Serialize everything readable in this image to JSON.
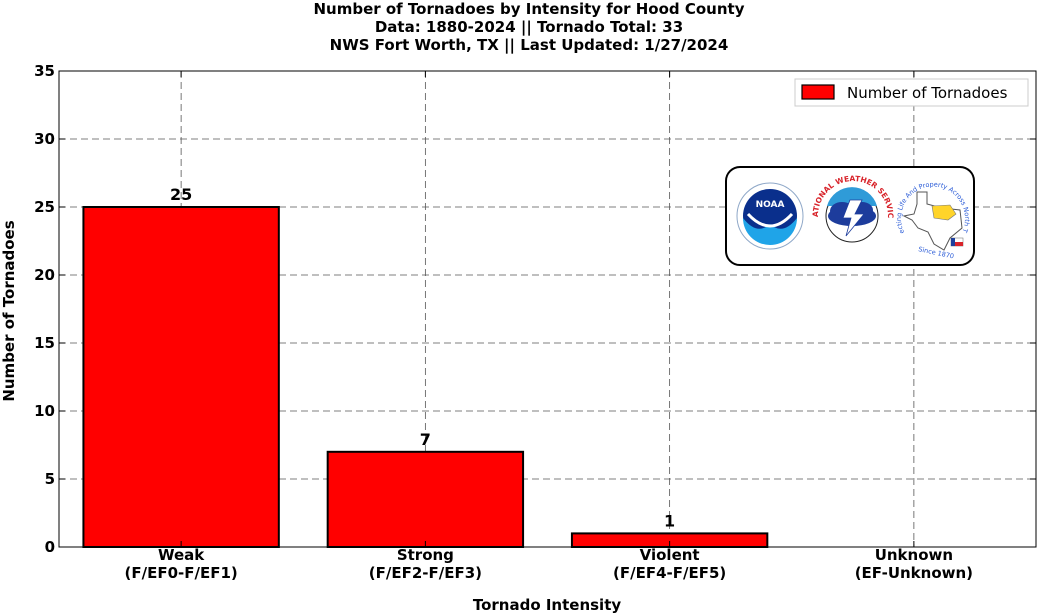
{
  "chart_data": {
    "type": "bar",
    "title": [
      "Number of Tornadoes by Intensity for Hood County",
      "Data: 1880-2024 || Tornado Total: 33",
      "NWS Fort Worth, TX || Last Updated: 1/27/2024"
    ],
    "categories": [
      [
        "Weak",
        "(F/EF0-F/EF1)"
      ],
      [
        "Strong",
        "(F/EF2-F/EF3)"
      ],
      [
        "Violent",
        "(F/EF4-F/EF5)"
      ],
      [
        "Unknown",
        "(EF-Unknown)"
      ]
    ],
    "series": [
      {
        "name": "Number of Tornadoes",
        "values": [
          25,
          7,
          1,
          0
        ],
        "color": "#ff0000"
      }
    ],
    "data_labels": [
      "25",
      "7",
      "1",
      ""
    ],
    "xlabel": "Tornado Intensity",
    "ylabel": "Number of Tornadoes",
    "ylim": [
      0,
      35
    ],
    "yticks": [
      0,
      5,
      10,
      15,
      20,
      25,
      30,
      35
    ],
    "grid": true,
    "grid_style": "dashed",
    "legend_position": "top-right",
    "logos": [
      "noaa-logo",
      "national-weather-service-logo",
      "nws-fort-worth-texas-logo"
    ],
    "logo_text": {
      "noaa": "NOAA",
      "nws_ring": "NATIONAL WEATHER SERVICE",
      "fort_worth_ring": "Protecting Life And Property Across North Texas",
      "since": "Since 1870"
    }
  }
}
